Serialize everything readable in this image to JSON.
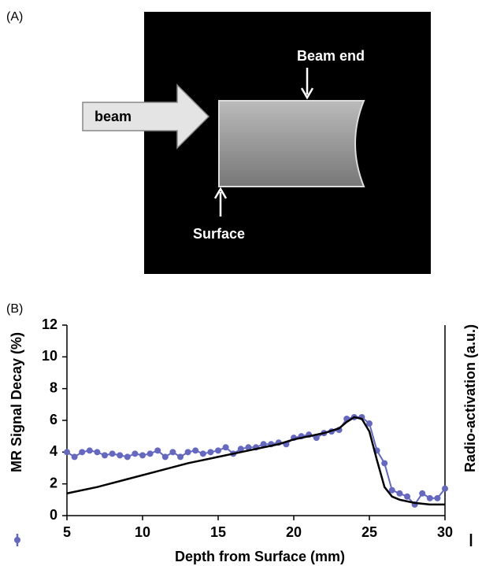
{
  "panel_a": {
    "label": "(A)",
    "beam": "beam",
    "beam_end": "Beam end",
    "surface": "Surface"
  },
  "chart_data": {
    "type": "line",
    "panel_label": "(B)",
    "xlabel": "Depth from Surface (mm)",
    "xlim": [
      5,
      30
    ],
    "xticks": [
      5,
      10,
      15,
      20,
      25,
      30
    ],
    "ylim": [
      0,
      12
    ],
    "yticks": [
      0,
      2,
      4,
      6,
      8,
      10,
      12
    ],
    "series": [
      {
        "name": "MR Signal Decay (%)",
        "color": "#6468c0",
        "markers": true,
        "x": [
          5,
          5.5,
          6,
          6.5,
          7,
          7.5,
          8,
          8.5,
          9,
          9.5,
          10,
          10.5,
          11,
          11.5,
          12,
          12.5,
          13,
          13.5,
          14,
          14.5,
          15,
          15.5,
          16,
          16.5,
          17,
          17.5,
          18,
          18.5,
          19,
          19.5,
          20,
          20.5,
          21,
          21.5,
          22,
          22.5,
          23,
          23.5,
          24,
          24.5,
          25,
          25.5,
          26,
          26.5,
          27,
          27.5,
          28,
          28.5,
          29,
          29.5,
          30
        ],
        "values": [
          4.0,
          3.7,
          4.0,
          4.1,
          4.0,
          3.8,
          3.9,
          3.8,
          3.7,
          3.9,
          3.8,
          3.9,
          4.1,
          3.7,
          4.0,
          3.7,
          4.0,
          4.1,
          3.9,
          4.0,
          4.1,
          4.3,
          3.9,
          4.2,
          4.3,
          4.3,
          4.5,
          4.5,
          4.6,
          4.5,
          4.9,
          5.0,
          5.1,
          4.9,
          5.2,
          5.3,
          5.4,
          6.1,
          6.2,
          6.2,
          5.8,
          4.1,
          3.3,
          1.6,
          1.4,
          1.2,
          0.7,
          1.4,
          1.1,
          1.1,
          1.7
        ]
      },
      {
        "name": "Radio-activation (a.u.)",
        "color": "#000000",
        "markers": false,
        "x": [
          5,
          7,
          9,
          11,
          13,
          15,
          17,
          19,
          20,
          21,
          22,
          23,
          23.5,
          24,
          24.5,
          25,
          25.5,
          26,
          26.5,
          27,
          28,
          29,
          30
        ],
        "values": [
          1.4,
          1.8,
          2.3,
          2.8,
          3.3,
          3.7,
          4.1,
          4.5,
          4.8,
          5.0,
          5.2,
          5.5,
          5.9,
          6.2,
          6.1,
          5.3,
          3.5,
          1.8,
          1.2,
          1.0,
          0.8,
          0.7,
          0.7
        ]
      }
    ]
  }
}
